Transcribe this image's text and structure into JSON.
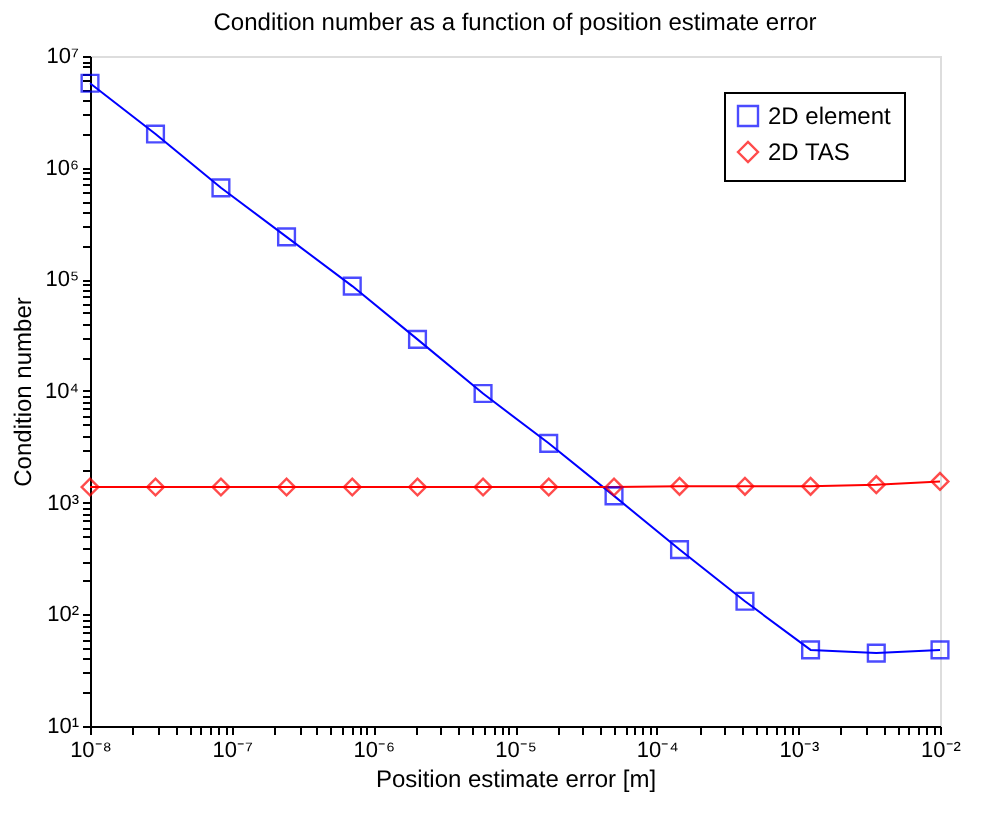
{
  "chart_data": {
    "type": "line",
    "title": "Condition number as a function of position estimate error",
    "xlabel": "Position estimate error [m]",
    "ylabel": "Condition number",
    "log": "xy",
    "grid": false,
    "legend": "top right",
    "line_style": "solid",
    "x": [
      1e-08,
      2.9e-08,
      8.4e-08,
      2.44e-07,
      7.1e-07,
      2.05e-06,
      5.95e-06,
      1.73e-05,
      5e-05,
      0.000145,
      0.00042,
      0.00122,
      0.00355,
      0.01
    ],
    "series": [
      {
        "name": "2D element",
        "color": "#0000ff",
        "marker": "square",
        "values": [
          5700000,
          2000000,
          660000,
          240000,
          87000,
          29000,
          9500,
          3400,
          1150,
          380,
          131,
          48,
          45,
          48
        ]
      },
      {
        "name": "2D TAS",
        "color": "#ff0000",
        "marker": "diamond",
        "values": [
          1380,
          1380,
          1380,
          1380,
          1380,
          1380,
          1380,
          1380,
          1380,
          1400,
          1400,
          1400,
          1450,
          1550
        ]
      }
    ],
    "xlim": [
      1e-08,
      0.01
    ],
    "ylim": [
      10,
      10000000
    ],
    "xticks": [
      {
        "value": 1e-08,
        "label": "10⁻⁸"
      },
      {
        "value": 2e-08,
        "label": null
      },
      {
        "value": 3e-08,
        "label": null
      },
      {
        "value": 4e-08,
        "label": null
      },
      {
        "value": 5e-08,
        "label": null
      },
      {
        "value": 6e-08,
        "label": null
      },
      {
        "value": 7e-08,
        "label": null
      },
      {
        "value": 8e-08,
        "label": null
      },
      {
        "value": 9e-08,
        "label": null
      },
      {
        "value": 1e-07,
        "label": "10⁻⁷"
      },
      {
        "value": 2e-07,
        "label": null
      },
      {
        "value": 3e-07,
        "label": null
      },
      {
        "value": 4e-07,
        "label": null
      },
      {
        "value": 5e-07,
        "label": null
      },
      {
        "value": 6e-07,
        "label": null
      },
      {
        "value": 7e-07,
        "label": null
      },
      {
        "value": 8e-07,
        "label": null
      },
      {
        "value": 9e-07,
        "label": null
      },
      {
        "value": 1e-06,
        "label": "10⁻⁶"
      },
      {
        "value": 2e-06,
        "label": null
      },
      {
        "value": 3e-06,
        "label": null
      },
      {
        "value": 4e-06,
        "label": null
      },
      {
        "value": 5e-06,
        "label": null
      },
      {
        "value": 6e-06,
        "label": null
      },
      {
        "value": 7e-06,
        "label": null
      },
      {
        "value": 8e-06,
        "label": null
      },
      {
        "value": 9e-06,
        "label": null
      },
      {
        "value": 1e-05,
        "label": "10⁻⁵"
      },
      {
        "value": 2e-05,
        "label": null
      },
      {
        "value": 3e-05,
        "label": null
      },
      {
        "value": 4e-05,
        "label": null
      },
      {
        "value": 5e-05,
        "label": null
      },
      {
        "value": 6e-05,
        "label": null
      },
      {
        "value": 7e-05,
        "label": null
      },
      {
        "value": 8e-05,
        "label": null
      },
      {
        "value": 9e-05,
        "label": null
      },
      {
        "value": 0.0001,
        "label": "10⁻⁴"
      },
      {
        "value": 0.0002,
        "label": null
      },
      {
        "value": 0.0003,
        "label": null
      },
      {
        "value": 0.0004,
        "label": null
      },
      {
        "value": 0.0005,
        "label": null
      },
      {
        "value": 0.0006,
        "label": null
      },
      {
        "value": 0.0007,
        "label": null
      },
      {
        "value": 0.0008,
        "label": null
      },
      {
        "value": 0.0009,
        "label": null
      },
      {
        "value": 0.001,
        "label": "10⁻³"
      },
      {
        "value": 0.002,
        "label": null
      },
      {
        "value": 0.003,
        "label": null
      },
      {
        "value": 0.004,
        "label": null
      },
      {
        "value": 0.005,
        "label": null
      },
      {
        "value": 0.006,
        "label": null
      },
      {
        "value": 0.007,
        "label": null
      },
      {
        "value": 0.008,
        "label": null
      },
      {
        "value": 0.009,
        "label": null
      },
      {
        "value": 0.01,
        "label": "10⁻²"
      }
    ],
    "yticks": [
      {
        "value": 10,
        "label": "10¹"
      },
      {
        "value": 20,
        "label": null
      },
      {
        "value": 30,
        "label": null
      },
      {
        "value": 40,
        "label": null
      },
      {
        "value": 50,
        "label": null
      },
      {
        "value": 60,
        "label": null
      },
      {
        "value": 70,
        "label": null
      },
      {
        "value": 80,
        "label": null
      },
      {
        "value": 90,
        "label": null
      },
      {
        "value": 100,
        "label": "10²"
      },
      {
        "value": 200,
        "label": null
      },
      {
        "value": 300,
        "label": null
      },
      {
        "value": 400,
        "label": null
      },
      {
        "value": 500,
        "label": null
      },
      {
        "value": 600,
        "label": null
      },
      {
        "value": 700,
        "label": null
      },
      {
        "value": 800,
        "label": null
      },
      {
        "value": 900,
        "label": null
      },
      {
        "value": 1000,
        "label": "10³"
      },
      {
        "value": 2000,
        "label": null
      },
      {
        "value": 3000,
        "label": null
      },
      {
        "value": 4000,
        "label": null
      },
      {
        "value": 5000,
        "label": null
      },
      {
        "value": 6000,
        "label": null
      },
      {
        "value": 7000,
        "label": null
      },
      {
        "value": 8000,
        "label": null
      },
      {
        "value": 9000,
        "label": null
      },
      {
        "value": 10000,
        "label": "10⁴"
      },
      {
        "value": 20000,
        "label": null
      },
      {
        "value": 30000,
        "label": null
      },
      {
        "value": 40000,
        "label": null
      },
      {
        "value": 50000,
        "label": null
      },
      {
        "value": 60000,
        "label": null
      },
      {
        "value": 70000,
        "label": null
      },
      {
        "value": 80000,
        "label": null
      },
      {
        "value": 90000,
        "label": null
      },
      {
        "value": 100000,
        "label": "10⁵"
      },
      {
        "value": 200000,
        "label": null
      },
      {
        "value": 300000,
        "label": null
      },
      {
        "value": 400000,
        "label": null
      },
      {
        "value": 500000,
        "label": null
      },
      {
        "value": 600000,
        "label": null
      },
      {
        "value": 700000,
        "label": null
      },
      {
        "value": 800000,
        "label": null
      },
      {
        "value": 900000,
        "label": null
      },
      {
        "value": 1000000,
        "label": "10⁶"
      },
      {
        "value": 2000000,
        "label": null
      },
      {
        "value": 3000000,
        "label": null
      },
      {
        "value": 4000000,
        "label": null
      },
      {
        "value": 5000000,
        "label": null
      },
      {
        "value": 6000000,
        "label": null
      },
      {
        "value": 7000000,
        "label": null
      },
      {
        "value": 8000000,
        "label": null
      },
      {
        "value": 9000000,
        "label": null
      },
      {
        "value": 10000000,
        "label": "10⁷"
      }
    ]
  }
}
